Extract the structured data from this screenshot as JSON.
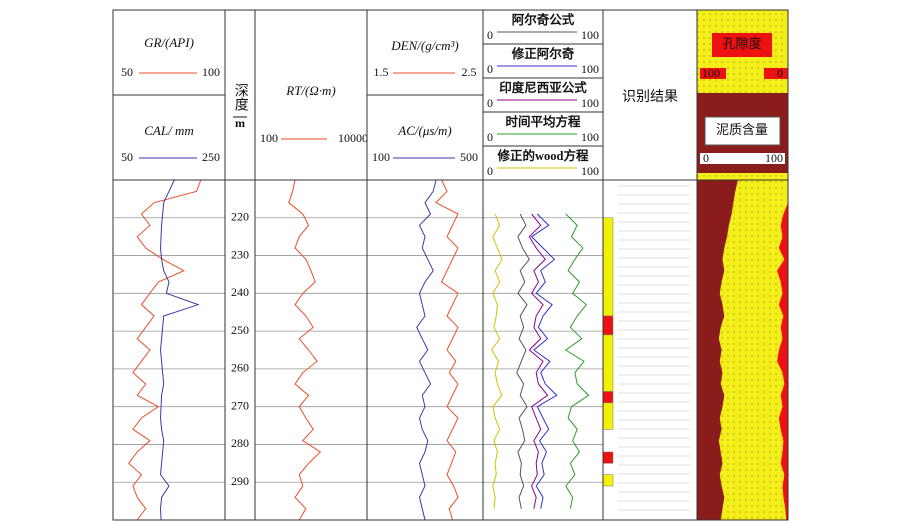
{
  "chart_data": {
    "type": "well_log",
    "depth_label": "深度",
    "depth_unit": "m",
    "ylim": [
      210,
      300
    ],
    "yticks": [
      220,
      230,
      240,
      250,
      260,
      270,
      280,
      290
    ],
    "depth": [
      210,
      213,
      216,
      219,
      222,
      225,
      228,
      231,
      234,
      237,
      240,
      243,
      246,
      249,
      252,
      255,
      258,
      261,
      264,
      267,
      270,
      273,
      276,
      279,
      282,
      285,
      288,
      291,
      294,
      297,
      300
    ],
    "tracks": [
      {
        "curves": [
          {
            "name": "GR/(API)",
            "color": "#e8502a",
            "scale": [
              50,
              100
            ],
            "values": [
              90,
              88,
              68,
              62,
              66,
              60,
              64,
              72,
              82,
              70,
              66,
              62,
              68,
              64,
              60,
              66,
              62,
              58,
              64,
              60,
              70,
              62,
              58,
              66,
              60,
              56,
              62,
              58,
              60,
              64,
              60
            ]
          },
          {
            "name": "CAL/ mm",
            "color": "#3a3aa8",
            "scale": [
              50,
              250
            ],
            "values": [
              160,
              150,
              140,
              138,
              136,
              135,
              134,
              136,
              140,
              150,
              145,
              205,
              140,
              138,
              136,
              134,
              136,
              138,
              140,
              136,
              135,
              134,
              136,
              140,
              138,
              136,
              134,
              150,
              136,
              134,
              135
            ]
          }
        ]
      },
      {
        "curves": [
          {
            "name": "RT/(Ω·m)",
            "color": "#e8502a",
            "scale": [
              100,
              10000
            ],
            "log": true,
            "values": [
              500,
              450,
              380,
              700,
              900,
              600,
              500,
              800,
              1000,
              1200,
              700,
              500,
              800,
              1100,
              600,
              900,
              1300,
              700,
              500,
              900,
              600,
              800,
              1100,
              700,
              1500,
              900,
              600,
              700,
              500,
              800,
              600
            ]
          }
        ]
      },
      {
        "curves": [
          {
            "name": "DEN/(g/cm³)",
            "color": "#e8502a",
            "scale": [
              1.5,
              2.5
            ],
            "values": [
              2.15,
              2.2,
              2.1,
              2.3,
              2.25,
              2.2,
              2.3,
              2.25,
              2.2,
              2.15,
              2.3,
              2.25,
              2.2,
              2.3,
              2.25,
              2.2,
              2.28,
              2.22,
              2.3,
              2.25,
              2.2,
              2.3,
              2.25,
              2.2,
              2.28,
              2.24,
              2.2,
              2.26,
              2.3,
              2.22,
              2.25
            ]
          },
          {
            "name": "AC/(μs/m)",
            "color": "#3a3aa8",
            "scale": [
              100,
              500
            ],
            "values": [
              340,
              330,
              300,
              320,
              280,
              300,
              290,
              310,
              330,
              300,
              280,
              290,
              300,
              270,
              290,
              310,
              280,
              300,
              320,
              290,
              300,
              280,
              290,
              310,
              300,
              280,
              290,
              300,
              280,
              290,
              300
            ]
          }
        ]
      },
      {
        "curves": [
          {
            "name": "阿尔奇公式",
            "color": "#555555",
            "scale": [
              0,
              100
            ],
            "values": [
              null,
              null,
              null,
              30,
              35,
              28,
              32,
              38,
              30,
              34,
              28,
              36,
              30,
              33,
              29,
              35,
              31,
              27,
              33,
              30,
              36,
              29,
              32,
              34,
              28,
              31,
              30,
              33,
              29,
              31,
              null
            ]
          },
          {
            "name": "修正阿尔奇",
            "color": "#3333cc",
            "scale": [
              0,
              100
            ],
            "values": [
              null,
              null,
              null,
              45,
              55,
              40,
              50,
              60,
              48,
              52,
              44,
              58,
              50,
              46,
              54,
              42,
              56,
              48,
              52,
              62,
              45,
              50,
              55,
              47,
              53,
              49,
              51,
              44,
              50,
              48,
              null
            ]
          },
          {
            "name": "印度尼西亚公式",
            "color": "#8b008b",
            "scale": [
              0,
              100
            ],
            "values": [
              null,
              null,
              null,
              40,
              48,
              38,
              44,
              52,
              42,
              46,
              40,
              50,
              44,
              42,
              48,
              38,
              50,
              44,
              46,
              54,
              40,
              44,
              48,
              42,
              46,
              44,
              45,
              40,
              44,
              42,
              null
            ]
          },
          {
            "name": "时间平均方程",
            "color": "#2e9b2e",
            "scale": [
              0,
              100
            ],
            "values": [
              null,
              null,
              null,
              70,
              80,
              75,
              85,
              78,
              72,
              82,
              76,
              88,
              80,
              74,
              84,
              70,
              86,
              78,
              80,
              90,
              75,
              72,
              80,
              76,
              82,
              74,
              78,
              70,
              76,
              74,
              null
            ]
          },
          {
            "name": "修正的wood方程",
            "color": "#d4c000",
            "scale": [
              0,
              100
            ],
            "values": [
              null,
              null,
              null,
              8,
              12,
              6,
              10,
              14,
              8,
              12,
              6,
              10,
              9,
              7,
              12,
              5,
              11,
              8,
              10,
              14,
              6,
              8,
              12,
              7,
              10,
              8,
              9,
              6,
              8,
              7,
              null
            ]
          }
        ]
      },
      {
        "title": "识别结果",
        "intervals": [
          {
            "top": 220,
            "bottom": 246,
            "color": "#f2f200"
          },
          {
            "top": 246,
            "bottom": 251,
            "color": "#ee1111"
          },
          {
            "top": 251,
            "bottom": 266,
            "color": "#f2f200"
          },
          {
            "top": 266,
            "bottom": 269,
            "color": "#ee1111"
          },
          {
            "top": 269,
            "bottom": 276,
            "color": "#f2f200"
          },
          {
            "top": 282,
            "bottom": 285,
            "color": "#ee1111"
          },
          {
            "top": 288,
            "bottom": 291,
            "color": "#f2f200"
          }
        ]
      },
      {
        "curves": [
          {
            "name": "孔隙度",
            "color": "#ee1111",
            "scale": [
              100,
              0
            ],
            "fill": "right",
            "values": [
              0,
              0,
              0,
              5,
              8,
              6,
              10,
              4,
              12,
              8,
              6,
              10,
              5,
              8,
              6,
              10,
              12,
              6,
              4,
              8,
              6,
              10,
              8,
              5,
              6,
              8,
              4,
              6,
              5,
              3,
              2
            ]
          },
          {
            "name": "泥质含量",
            "color": "#8b1c1c",
            "scale": [
              0,
              100
            ],
            "fill": "left",
            "values": [
              45,
              42,
              40,
              38,
              35,
              33,
              30,
              28,
              30,
              27,
              25,
              28,
              30,
              26,
              24,
              27,
              25,
              28,
              26,
              30,
              28,
              25,
              27,
              24,
              26,
              28,
              25,
              27,
              30,
              28,
              26
            ]
          }
        ]
      }
    ]
  }
}
